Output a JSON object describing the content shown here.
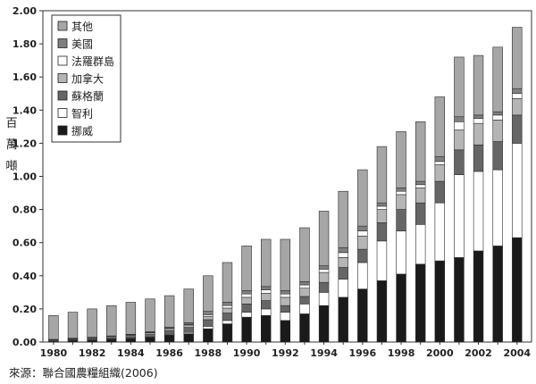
{
  "chart_data": {
    "type": "bar",
    "stacked": true,
    "title": "",
    "xlabel": "",
    "ylabel": "百萬噸",
    "ylim": [
      0,
      2.0
    ],
    "yticks": [
      "0.00",
      "0.20",
      "0.40",
      "0.60",
      "0.80",
      "1.00",
      "1.20",
      "1.40",
      "1.60",
      "1.80",
      "2.00"
    ],
    "xtick_labels": [
      "1980",
      "1982",
      "1984",
      "1986",
      "1988",
      "1990",
      "1992",
      "1994",
      "1996",
      "1998",
      "2000",
      "2002",
      "2004"
    ],
    "categories": [
      "1980",
      "1981",
      "1982",
      "1983",
      "1984",
      "1985",
      "1986",
      "1987",
      "1988",
      "1989",
      "1990",
      "1991",
      "1992",
      "1993",
      "1994",
      "1995",
      "1996",
      "1997",
      "1998",
      "1999",
      "2000",
      "2001",
      "2002",
      "2003",
      "2004"
    ],
    "grid": false,
    "legend_position": "top-left",
    "series": [
      {
        "name": "挪威",
        "color": "#1a1a1a",
        "values": [
          0.004,
          0.009,
          0.011,
          0.017,
          0.021,
          0.027,
          0.043,
          0.05,
          0.08,
          0.11,
          0.15,
          0.16,
          0.13,
          0.17,
          0.22,
          0.27,
          0.32,
          0.37,
          0.41,
          0.47,
          0.49,
          0.51,
          0.55,
          0.58,
          0.63
        ]
      },
      {
        "name": "智利",
        "color": "#ffffff",
        "values": [
          0.0,
          0.0,
          0.001,
          0.001,
          0.002,
          0.003,
          0.005,
          0.008,
          0.015,
          0.02,
          0.03,
          0.04,
          0.05,
          0.06,
          0.08,
          0.11,
          0.16,
          0.24,
          0.26,
          0.24,
          0.35,
          0.5,
          0.48,
          0.46,
          0.57
        ]
      },
      {
        "name": "蘇格蘭",
        "color": "#666666",
        "values": [
          0.004,
          0.005,
          0.007,
          0.008,
          0.01,
          0.015,
          0.02,
          0.03,
          0.04,
          0.045,
          0.05,
          0.05,
          0.04,
          0.045,
          0.06,
          0.07,
          0.08,
          0.11,
          0.13,
          0.13,
          0.13,
          0.15,
          0.16,
          0.17,
          0.17
        ]
      },
      {
        "name": "加拿大",
        "color": "#b5b5b5",
        "values": [
          0.005,
          0.005,
          0.006,
          0.007,
          0.008,
          0.01,
          0.012,
          0.015,
          0.02,
          0.03,
          0.04,
          0.045,
          0.05,
          0.05,
          0.06,
          0.06,
          0.08,
          0.08,
          0.09,
          0.09,
          0.1,
          0.12,
          0.13,
          0.13,
          0.1
        ]
      },
      {
        "name": "法羅群島",
        "color": "#ffffff",
        "values": [
          0.001,
          0.001,
          0.001,
          0.001,
          0.002,
          0.002,
          0.002,
          0.004,
          0.01,
          0.015,
          0.02,
          0.02,
          0.02,
          0.02,
          0.02,
          0.03,
          0.03,
          0.02,
          0.02,
          0.02,
          0.02,
          0.05,
          0.03,
          0.03,
          0.03
        ]
      },
      {
        "name": "美國",
        "color": "#7f7f7f",
        "values": [
          0.002,
          0.003,
          0.003,
          0.003,
          0.004,
          0.005,
          0.008,
          0.01,
          0.02,
          0.02,
          0.02,
          0.02,
          0.02,
          0.02,
          0.02,
          0.03,
          0.03,
          0.02,
          0.02,
          0.02,
          0.03,
          0.03,
          0.02,
          0.02,
          0.03
        ]
      },
      {
        "name": "其他",
        "color": "#a6a6a6",
        "values": [
          0.144,
          0.157,
          0.171,
          0.183,
          0.193,
          0.198,
          0.19,
          0.203,
          0.215,
          0.24,
          0.27,
          0.285,
          0.31,
          0.325,
          0.33,
          0.34,
          0.34,
          0.34,
          0.34,
          0.36,
          0.36,
          0.36,
          0.36,
          0.39,
          0.37
        ]
      }
    ]
  },
  "source_text": "來源：聯合國農糧組織(2006)"
}
